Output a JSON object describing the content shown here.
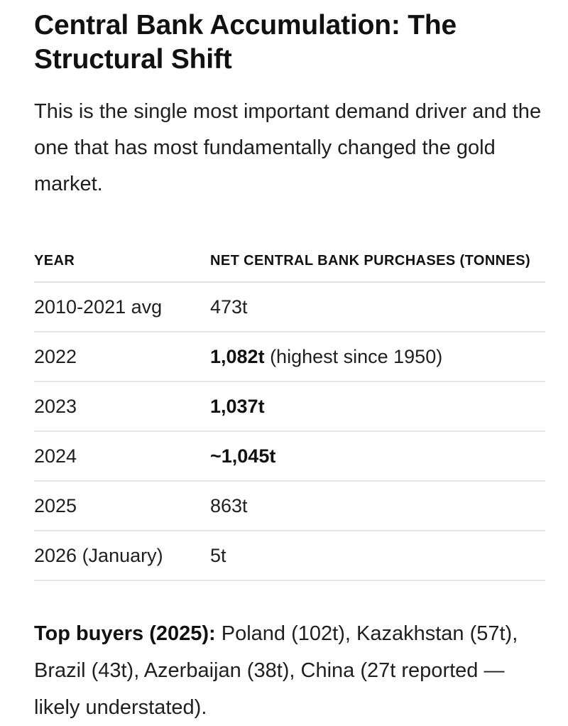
{
  "title": "Central Bank Accumulation: The Structural Shift",
  "intro": "This is the single most important demand driver and the one that has most fundamentally changed the gold market.",
  "table": {
    "headers": [
      "YEAR",
      "NET CENTRAL BANK PURCHASES (TONNES)"
    ],
    "rows": [
      {
        "year": "2010-2021 avg",
        "value": "473t",
        "bold": false,
        "note": ""
      },
      {
        "year": "2022",
        "value": "1,082t",
        "bold": true,
        "note": " (highest since 1950)"
      },
      {
        "year": "2023",
        "value": "1,037t",
        "bold": true,
        "note": ""
      },
      {
        "year": "2024",
        "value": "~1,045t",
        "bold": true,
        "note": ""
      },
      {
        "year": "2025",
        "value": "863t",
        "bold": false,
        "note": ""
      },
      {
        "year": "2026 (January)",
        "value": "5t",
        "bold": false,
        "note": ""
      }
    ]
  },
  "top_buyers": {
    "label": "Top buyers (2025):",
    "text": " Poland (102t), Kazakhstan (57t), Brazil (43t), Azerbaijan (38t), China (27t reported — likely understated)."
  }
}
